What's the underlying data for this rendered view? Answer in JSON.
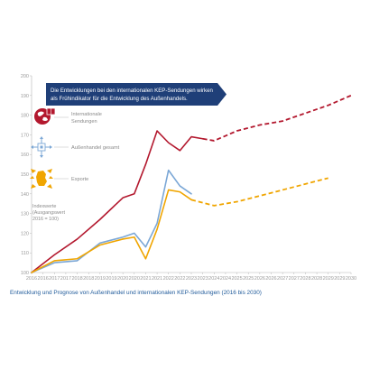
{
  "chart_data": {
    "type": "line",
    "caption": "Entwicklung und Prognose von Außenhandel und internationalen KEP-Sendungen (2016 bis 2030)",
    "callout": {
      "line1": "Die Entwicklungen bei den internationalen KEP-Sendungen wirken",
      "line2": "als Frühindikator für die Entwicklung des Außenhandels."
    },
    "index_note": {
      "line1": "Indexwerte",
      "line2": "(Ausgangswert",
      "line3": "2016 = 100)"
    },
    "x": [
      2016,
      2016.5,
      2017,
      2017.5,
      2018,
      2018.5,
      2019,
      2019.5,
      2020,
      2020.5,
      2021,
      2021.5,
      2022,
      2022.5,
      2023,
      2023.5,
      2024,
      2024.5,
      2025,
      2025.5,
      2026,
      2026.5,
      2027,
      2027.5,
      2028,
      2028.5,
      2029,
      2029.5,
      2030
    ],
    "x_tick_labels": [
      "2016",
      "2016",
      "2017",
      "2017",
      "2018",
      "2018",
      "2019",
      "2019",
      "2020",
      "2020",
      "2021",
      "2021",
      "2022",
      "2022",
      "2023",
      "2023",
      "2024",
      "2024",
      "2025",
      "2025",
      "2026",
      "2026",
      "2027",
      "2027",
      "2028",
      "2028",
      "2029",
      "2029",
      "2030"
    ],
    "ylim": [
      100,
      200
    ],
    "y_ticks": [
      100,
      110,
      120,
      130,
      140,
      150,
      160,
      170,
      180,
      190,
      200
    ],
    "grid": false,
    "series": [
      {
        "name": "Internationale Sendungen",
        "color": "#b3182e",
        "actual": [
          [
            2016,
            100
          ],
          [
            2017,
            109
          ],
          [
            2018,
            117
          ],
          [
            2019,
            127
          ],
          [
            2020,
            138
          ],
          [
            2020.5,
            140
          ],
          [
            2021,
            155
          ],
          [
            2021.5,
            172
          ],
          [
            2022,
            166
          ],
          [
            2022.5,
            162
          ],
          [
            2023,
            169
          ],
          [
            2023.5,
            168
          ]
        ],
        "forecast": [
          [
            2023.5,
            168
          ],
          [
            2024,
            167
          ],
          [
            2025,
            172
          ],
          [
            2026,
            175
          ],
          [
            2027,
            177
          ],
          [
            2028,
            181
          ],
          [
            2029,
            185
          ],
          [
            2030,
            190
          ]
        ]
      },
      {
        "name": "Außenhandel gesamt",
        "color": "#7ba7d6",
        "actual": [
          [
            2016,
            100
          ],
          [
            2017,
            105
          ],
          [
            2018,
            106
          ],
          [
            2019,
            115
          ],
          [
            2020,
            118
          ],
          [
            2020.5,
            120
          ],
          [
            2021,
            113
          ],
          [
            2021.5,
            125
          ],
          [
            2022,
            152
          ],
          [
            2022.5,
            144
          ],
          [
            2023,
            140
          ]
        ],
        "forecast": []
      },
      {
        "name": "Exporte",
        "color": "#f0a500",
        "actual": [
          [
            2016,
            100
          ],
          [
            2017,
            106
          ],
          [
            2018,
            107
          ],
          [
            2019,
            114
          ],
          [
            2020,
            117
          ],
          [
            2020.5,
            118
          ],
          [
            2021,
            107
          ],
          [
            2021.5,
            122
          ],
          [
            2022,
            142
          ],
          [
            2022.5,
            141
          ],
          [
            2023,
            137
          ]
        ],
        "forecast": [
          [
            2023,
            137
          ],
          [
            2024,
            134
          ],
          [
            2025,
            136
          ],
          [
            2026,
            139
          ],
          [
            2027,
            142
          ],
          [
            2028,
            145
          ],
          [
            2029,
            148
          ]
        ]
      }
    ],
    "legend": [
      {
        "label_line1": "Internationale",
        "label_line2": "Sendungen",
        "icon": "globe-parcel-icon"
      },
      {
        "label_line1": "Außenhandel gesamt",
        "label_line2": "",
        "icon": "trade-arrows-icon"
      },
      {
        "label_line1": "Exporte",
        "label_line2": "",
        "icon": "germany-export-icon"
      }
    ]
  },
  "colors": {
    "callout_background": "#1f3f78",
    "caption_text": "#1f5a9a",
    "axis": "#b5b5b5"
  }
}
